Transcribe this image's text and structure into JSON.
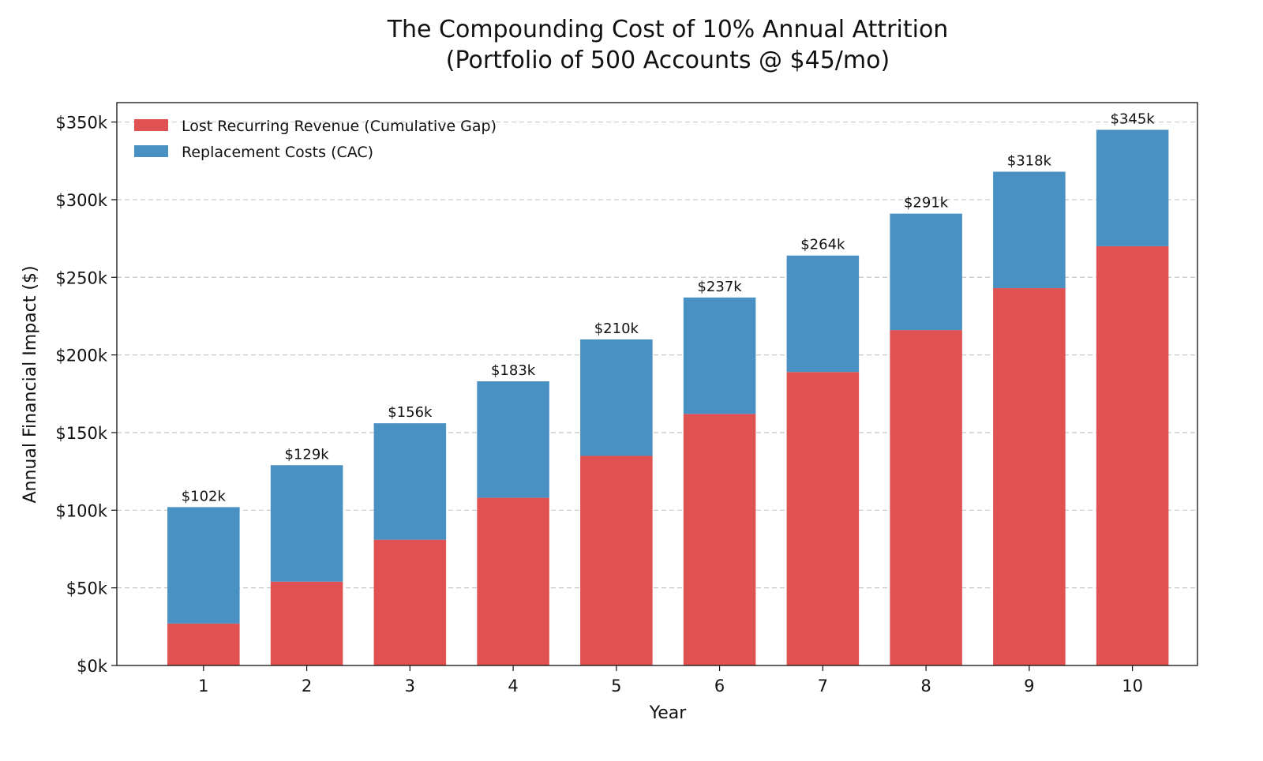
{
  "chart_data": {
    "type": "bar",
    "stacked": true,
    "title_line1": "The Compounding Cost of 10% Annual Attrition",
    "title_line2": "(Portfolio of 500 Accounts @ $45/mo)",
    "xlabel": "Year",
    "ylabel": "Annual Financial Impact ($)",
    "categories": [
      "1",
      "2",
      "3",
      "4",
      "5",
      "6",
      "7",
      "8",
      "9",
      "10"
    ],
    "series": [
      {
        "name": "Lost Recurring Revenue (Cumulative Gap)",
        "color": "#e05252",
        "values": [
          27000,
          54000,
          81000,
          108000,
          135000,
          162000,
          189000,
          216000,
          243000,
          270000
        ]
      },
      {
        "name": "Replacement Costs (CAC)",
        "color": "#4a91c3",
        "values": [
          75000,
          75000,
          75000,
          75000,
          75000,
          75000,
          75000,
          75000,
          75000,
          75000
        ]
      }
    ],
    "total_labels": [
      "$102k",
      "$129k",
      "$156k",
      "$183k",
      "$210k",
      "$237k",
      "$264k",
      "$291k",
      "$318k",
      "$345k"
    ],
    "yticks": [
      0,
      50000,
      100000,
      150000,
      200000,
      250000,
      300000,
      350000
    ],
    "ytick_labels": [
      "$0k",
      "$50k",
      "$100k",
      "$150k",
      "$200k",
      "$250k",
      "$300k",
      "$350k"
    ],
    "ylim": [
      0,
      362500
    ],
    "xlim": [
      0.16,
      10.63
    ],
    "grid": "y-dashed",
    "legend_position": "top-left"
  }
}
